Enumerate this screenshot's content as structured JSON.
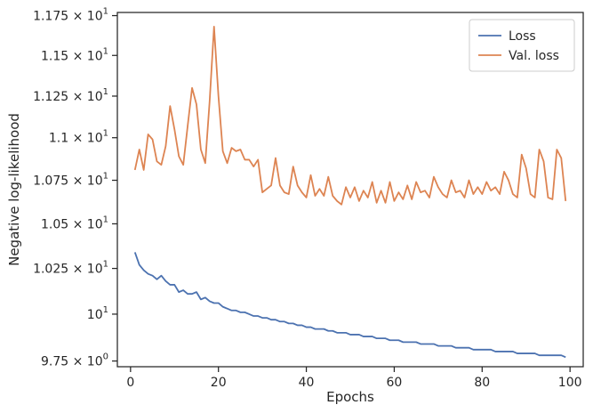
{
  "chart_data": {
    "type": "line",
    "xlabel": "Epochs",
    "ylabel": "Negative log-likelihood",
    "xlim": [
      -3,
      103
    ],
    "ylim": [
      9.72,
      11.77
    ],
    "y_scale": "log",
    "grid": false,
    "legend_placement": "top-right",
    "x_ticks": [
      {
        "value": 0,
        "label": "0"
      },
      {
        "value": 20,
        "label": "20"
      },
      {
        "value": 40,
        "label": "40"
      },
      {
        "value": 60,
        "label": "60"
      },
      {
        "value": 80,
        "label": "80"
      },
      {
        "value": 100,
        "label": "100"
      }
    ],
    "y_ticks": [
      {
        "value": 9.75,
        "mantissa": "9.75",
        "base": "10",
        "exp": "0"
      },
      {
        "value": 10.0,
        "mantissa": "",
        "base": "10",
        "exp": "1"
      },
      {
        "value": 10.25,
        "mantissa": "1.025",
        "base": "10",
        "exp": "1"
      },
      {
        "value": 10.5,
        "mantissa": "1.05",
        "base": "10",
        "exp": "1"
      },
      {
        "value": 10.75,
        "mantissa": "1.075",
        "base": "10",
        "exp": "1"
      },
      {
        "value": 11.0,
        "mantissa": "1.1",
        "base": "10",
        "exp": "1"
      },
      {
        "value": 11.25,
        "mantissa": "1.125",
        "base": "10",
        "exp": "1"
      },
      {
        "value": 11.5,
        "mantissa": "1.15",
        "base": "10",
        "exp": "1"
      },
      {
        "value": 11.75,
        "mantissa": "1.175",
        "base": "10",
        "exp": "1"
      }
    ],
    "x": [
      1,
      2,
      3,
      4,
      5,
      6,
      7,
      8,
      9,
      10,
      11,
      12,
      13,
      14,
      15,
      16,
      17,
      18,
      19,
      20,
      21,
      22,
      23,
      24,
      25,
      26,
      27,
      28,
      29,
      30,
      31,
      32,
      33,
      34,
      35,
      36,
      37,
      38,
      39,
      40,
      41,
      42,
      43,
      44,
      45,
      46,
      47,
      48,
      49,
      50,
      51,
      52,
      53,
      54,
      55,
      56,
      57,
      58,
      59,
      60,
      61,
      62,
      63,
      64,
      65,
      66,
      67,
      68,
      69,
      70,
      71,
      72,
      73,
      74,
      75,
      76,
      77,
      78,
      79,
      80,
      81,
      82,
      83,
      84,
      85,
      86,
      87,
      88,
      89,
      90,
      91,
      92,
      93,
      94,
      95,
      96,
      97,
      98,
      99
    ],
    "series": [
      {
        "name": "Loss",
        "color": "#4c72b0",
        "values": [
          10.34,
          10.27,
          10.24,
          10.22,
          10.21,
          10.19,
          10.21,
          10.18,
          10.16,
          10.16,
          10.12,
          10.13,
          10.11,
          10.11,
          10.12,
          10.08,
          10.09,
          10.07,
          10.06,
          10.06,
          10.04,
          10.03,
          10.02,
          10.02,
          10.01,
          10.01,
          10.0,
          9.99,
          9.99,
          9.98,
          9.98,
          9.97,
          9.97,
          9.96,
          9.96,
          9.95,
          9.95,
          9.94,
          9.94,
          9.93,
          9.93,
          9.92,
          9.92,
          9.92,
          9.91,
          9.91,
          9.9,
          9.9,
          9.9,
          9.89,
          9.89,
          9.89,
          9.88,
          9.88,
          9.88,
          9.87,
          9.87,
          9.87,
          9.86,
          9.86,
          9.86,
          9.85,
          9.85,
          9.85,
          9.85,
          9.84,
          9.84,
          9.84,
          9.84,
          9.83,
          9.83,
          9.83,
          9.83,
          9.82,
          9.82,
          9.82,
          9.82,
          9.81,
          9.81,
          9.81,
          9.81,
          9.81,
          9.8,
          9.8,
          9.8,
          9.8,
          9.8,
          9.79,
          9.79,
          9.79,
          9.79,
          9.79,
          9.78,
          9.78,
          9.78,
          9.78,
          9.78,
          9.78,
          9.77
        ]
      },
      {
        "name": "Val. loss",
        "color": "#dd8452",
        "values": [
          10.81,
          10.93,
          10.81,
          11.02,
          10.99,
          10.86,
          10.84,
          10.95,
          11.19,
          11.05,
          10.89,
          10.84,
          11.07,
          11.3,
          11.2,
          10.93,
          10.85,
          11.22,
          11.68,
          11.25,
          10.92,
          10.85,
          10.94,
          10.92,
          10.93,
          10.87,
          10.87,
          10.83,
          10.87,
          10.68,
          10.7,
          10.72,
          10.88,
          10.72,
          10.68,
          10.67,
          10.83,
          10.72,
          10.68,
          10.65,
          10.78,
          10.66,
          10.7,
          10.66,
          10.77,
          10.66,
          10.63,
          10.61,
          10.71,
          10.65,
          10.71,
          10.63,
          10.69,
          10.65,
          10.74,
          10.62,
          10.69,
          10.62,
          10.74,
          10.63,
          10.68,
          10.64,
          10.72,
          10.64,
          10.74,
          10.68,
          10.69,
          10.65,
          10.77,
          10.71,
          10.67,
          10.65,
          10.75,
          10.68,
          10.69,
          10.65,
          10.75,
          10.67,
          10.71,
          10.67,
          10.74,
          10.69,
          10.71,
          10.67,
          10.8,
          10.75,
          10.67,
          10.65,
          10.9,
          10.82,
          10.67,
          10.65,
          10.93,
          10.86,
          10.65,
          10.64,
          10.93,
          10.88,
          10.63
        ]
      }
    ]
  }
}
